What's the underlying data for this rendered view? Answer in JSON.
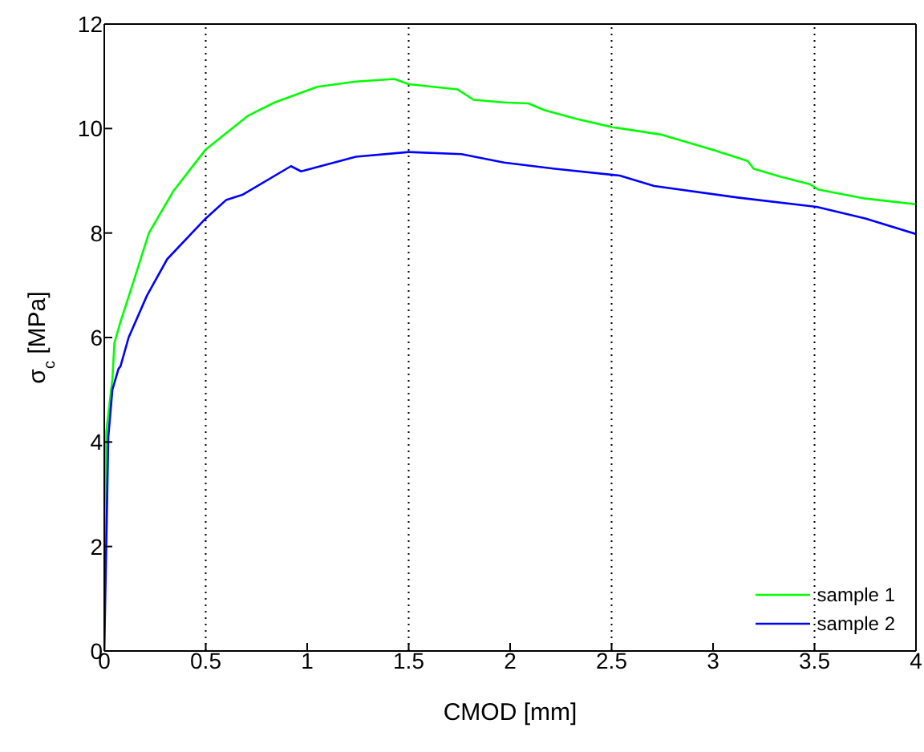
{
  "chart_data": {
    "type": "line",
    "xlabel": "CMOD [mm]",
    "ylabel": "σ$_{c}$ [MPa]",
    "xlim": [
      0,
      4
    ],
    "xticks": [
      0,
      0.5,
      1,
      1.5,
      2,
      2.5,
      3,
      3.5,
      4
    ],
    "ylim": [
      0,
      12
    ],
    "yticks": [
      0,
      2,
      4,
      6,
      8,
      10,
      12
    ],
    "legend": "bottom right",
    "marker": "none",
    "line_style": "solid",
    "ref_lines": [
      {
        "axis": "x",
        "value": 0.5,
        "color": "#000000",
        "line_style": "dotted"
      },
      {
        "axis": "x",
        "value": 1.5,
        "color": "#000000",
        "line_style": "dotted"
      },
      {
        "axis": "x",
        "value": 2.5,
        "color": "#000000",
        "line_style": "dotted"
      },
      {
        "axis": "x",
        "value": 3.5,
        "color": "#000000",
        "line_style": "dotted"
      }
    ],
    "series": [
      {
        "name": "sample 1",
        "color": "#00ff00",
        "x": [
          0,
          0.01,
          0.04,
          0.05,
          0.08,
          0.13,
          0.22,
          0.34,
          0.5,
          0.71,
          0.84,
          1.05,
          1.24,
          1.43,
          1.5,
          1.74,
          1.82,
          1.97,
          2.09,
          2.17,
          2.33,
          2.5,
          2.75,
          3.01,
          3.17,
          3.2,
          3.33,
          3.48,
          3.52,
          3.75,
          4.0
        ],
        "values": [
          0,
          4.2,
          5.2,
          5.9,
          6.3,
          6.9,
          8.0,
          8.8,
          9.6,
          10.25,
          10.5,
          10.8,
          10.9,
          10.95,
          10.85,
          10.75,
          10.55,
          10.5,
          10.48,
          10.35,
          10.18,
          10.03,
          9.88,
          9.58,
          9.38,
          9.23,
          9.08,
          8.93,
          8.83,
          8.66,
          8.55
        ]
      },
      {
        "name": "sample 2",
        "color": "#0000ff",
        "x": [
          0,
          0.02,
          0.04,
          0.07,
          0.08,
          0.12,
          0.21,
          0.31,
          0.5,
          0.6,
          0.68,
          0.92,
          0.97,
          1.24,
          1.5,
          1.76,
          1.97,
          2.22,
          2.54,
          2.71,
          3.12,
          3.51,
          3.75,
          4.0
        ],
        "values": [
          0,
          4.1,
          5.0,
          5.4,
          5.45,
          6.0,
          6.8,
          7.5,
          8.28,
          8.63,
          8.73,
          9.28,
          9.18,
          9.46,
          9.55,
          9.51,
          9.35,
          9.23,
          9.1,
          8.9,
          8.68,
          8.5,
          8.28,
          7.98
        ]
      }
    ]
  }
}
